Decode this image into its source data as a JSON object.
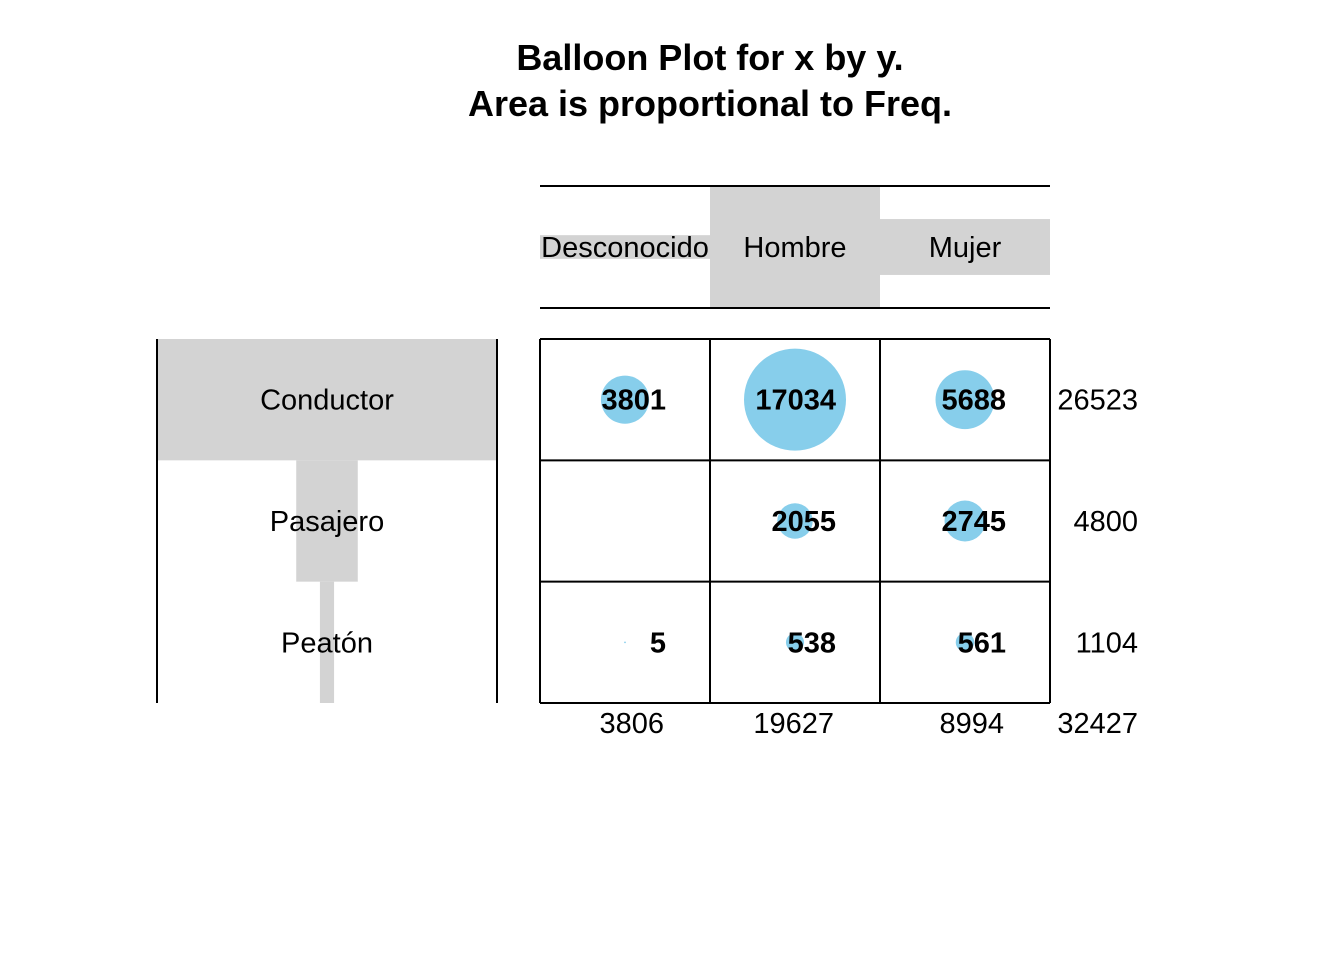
{
  "chart_data": {
    "type": "balloon",
    "title": "Balloon Plot for x by y.",
    "subtitle": "Area is proportional to Freq.",
    "columns": [
      "Desconocido",
      "Hombre",
      "Mujer"
    ],
    "rows": [
      "Conductor",
      "Pasajero",
      "Peatón"
    ],
    "values": [
      [
        3801,
        17034,
        5688
      ],
      [
        null,
        2055,
        2745
      ],
      [
        5,
        538,
        561
      ]
    ],
    "row_totals": [
      26523,
      4800,
      1104
    ],
    "col_totals": [
      3806,
      19627,
      8994
    ],
    "grand_total": 32427,
    "colors": {
      "balloon": "#87ceeb",
      "marginal_bar": "#d3d3d3",
      "grid": "#000000"
    }
  }
}
